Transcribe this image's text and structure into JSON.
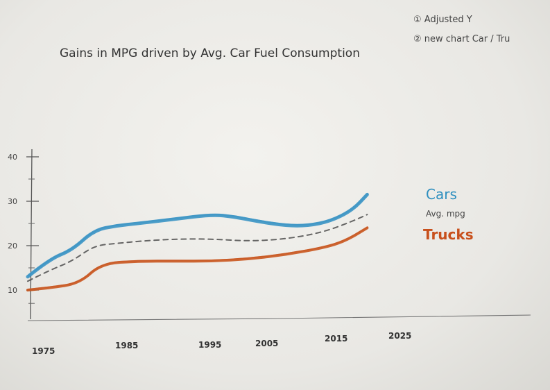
{
  "notes": [
    "① Adjusted Y",
    "② new chart  Car / Tru"
  ],
  "chart_data": {
    "type": "line",
    "title": "Gains in MPG driven by Avg. Car Fuel Consumption",
    "xlabel": "",
    "ylabel": "",
    "xlim": [
      1975,
      2025
    ],
    "ylim": [
      5,
      42
    ],
    "x_ticks": [
      "1975",
      "1985",
      "1995",
      "2005",
      "2015",
      "2025"
    ],
    "y_ticks": [
      "10",
      "20",
      "30",
      "40"
    ],
    "grid": false,
    "legend": "right, next to line ends",
    "series": [
      {
        "name": "Cars",
        "color": "#3a93c4",
        "style": "solid",
        "x": [
          1975,
          1978,
          1981,
          1984,
          1987,
          1990,
          1995,
          2000,
          2003,
          2006,
          2010,
          2013,
          2016,
          2019,
          2021
        ],
        "y": [
          13,
          17,
          19,
          23.5,
          24.5,
          25,
          26,
          27,
          26.5,
          25.5,
          24.5,
          24.5,
          25.5,
          28,
          31.5
        ]
      },
      {
        "name": "Avg. mpg",
        "color": "#555555",
        "style": "dashed",
        "x": [
          1975,
          1978,
          1981,
          1984,
          1987,
          1990,
          1995,
          2000,
          2005,
          2010,
          2015,
          2019,
          2021
        ],
        "y": [
          12,
          14.5,
          16.5,
          20,
          20.5,
          21,
          21.5,
          21.5,
          21,
          21.5,
          23,
          25.5,
          27
        ]
      },
      {
        "name": "Trucks",
        "color": "#c9561f",
        "style": "solid",
        "x": [
          1975,
          1978,
          1982,
          1985,
          1990,
          1995,
          2000,
          2005,
          2010,
          2015,
          2018,
          2021
        ],
        "y": [
          10,
          10.5,
          11.5,
          16,
          16.5,
          16.5,
          16.5,
          17,
          18,
          19.5,
          21,
          24
        ]
      }
    ]
  }
}
